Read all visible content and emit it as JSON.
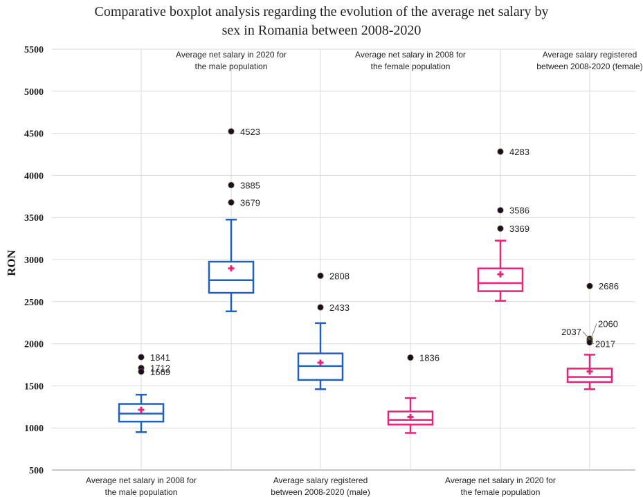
{
  "chart_data": {
    "type": "boxplot",
    "title": "Comparative boxplot analysis regarding the evolution of the average net salary by sex in Romania between 2008-2020",
    "title_lines": [
      "Comparative boxplot analysis regarding the evolution of the average net salary by",
      "sex in Romania between 2008-2020"
    ],
    "ylabel": "RON",
    "ylim": [
      500,
      5500
    ],
    "yticks": [
      500,
      1000,
      1500,
      2000,
      2500,
      3000,
      3500,
      4000,
      4500,
      5000,
      5500
    ],
    "grid": true,
    "colors": {
      "male": "#1f5fbf",
      "female": "#e8217a",
      "mean": "#e8217a",
      "outlier": "#1a0a2a"
    },
    "boxes": [
      {
        "label_lines": [
          "Average net salary in 2008 for",
          "the male population"
        ],
        "label_position": "bottom",
        "group": "male",
        "whisker_low": 950,
        "q1": 1075,
        "median": 1170,
        "q3": 1285,
        "whisker_high": 1395,
        "mean": 1215,
        "outliers": [
          {
            "value": 1841,
            "label": "1841"
          },
          {
            "value": 1712,
            "label": "1712"
          },
          {
            "value": 1669,
            "label": "1669"
          }
        ]
      },
      {
        "label_lines": [
          "Average net salary in 2020 for",
          "the male population"
        ],
        "label_position": "top",
        "group": "male",
        "whisker_low": 2385,
        "q1": 2605,
        "median": 2755,
        "q3": 2975,
        "whisker_high": 3475,
        "mean": 2895,
        "outliers": [
          {
            "value": 4523,
            "label": "4523"
          },
          {
            "value": 3885,
            "label": "3885"
          },
          {
            "value": 3679,
            "label": "3679"
          }
        ]
      },
      {
        "label_lines": [
          "Average salary registered",
          "between 2008-2020 (male)"
        ],
        "label_position": "bottom",
        "group": "male",
        "whisker_low": 1460,
        "q1": 1570,
        "median": 1735,
        "q3": 1885,
        "whisker_high": 2245,
        "mean": 1775,
        "outliers": [
          {
            "value": 2808,
            "label": "2808"
          },
          {
            "value": 2433,
            "label": "2433"
          }
        ]
      },
      {
        "label_lines": [
          "Average net salary in 2008 for",
          "the female population"
        ],
        "label_position": "top",
        "group": "female",
        "whisker_low": 940,
        "q1": 1040,
        "median": 1095,
        "q3": 1195,
        "whisker_high": 1355,
        "mean": 1130,
        "outliers": [
          {
            "value": 1836,
            "label": "1836"
          }
        ]
      },
      {
        "label_lines": [
          "Average net salary in 2020 for",
          "the female population"
        ],
        "label_position": "bottom",
        "group": "female",
        "whisker_low": 2510,
        "q1": 2625,
        "median": 2720,
        "q3": 2895,
        "whisker_high": 3225,
        "mean": 2825,
        "outliers": [
          {
            "value": 4283,
            "label": "4283"
          },
          {
            "value": 3586,
            "label": "3586"
          },
          {
            "value": 3369,
            "label": "3369"
          }
        ]
      },
      {
        "label_lines": [
          "Average salary registered",
          "between 2008-2020 (female)"
        ],
        "label_position": "top",
        "group": "female",
        "whisker_low": 1460,
        "q1": 1545,
        "median": 1605,
        "q3": 1705,
        "whisker_high": 1870,
        "mean": 1670,
        "outliers": [
          {
            "value": 2686,
            "label": "2686"
          },
          {
            "value": 2060,
            "label": "2060"
          },
          {
            "value": 2037,
            "label": "2037"
          },
          {
            "value": 2017,
            "label": "2017"
          }
        ]
      }
    ]
  }
}
